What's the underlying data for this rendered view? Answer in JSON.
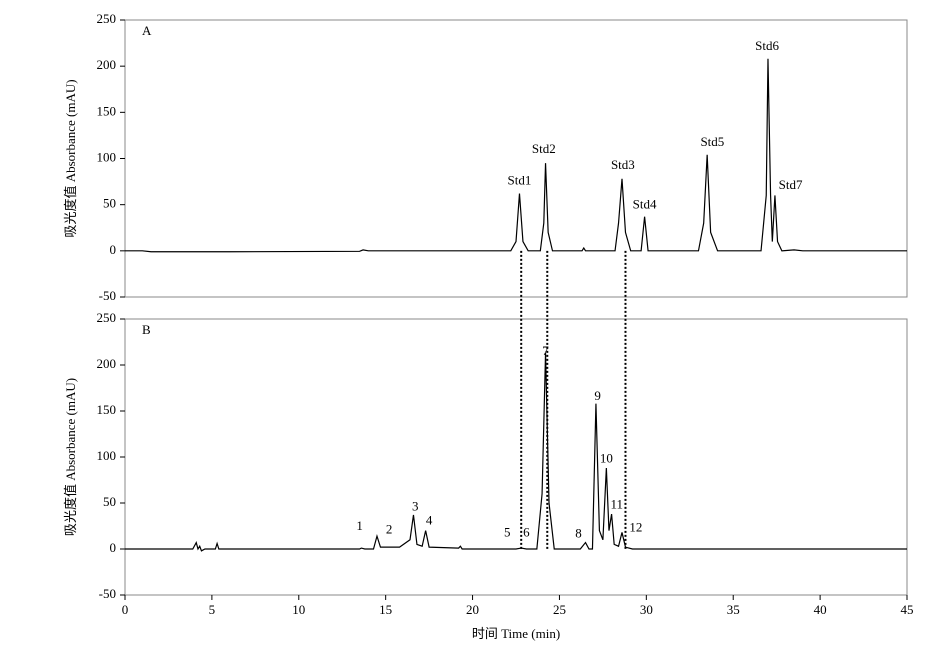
{
  "chart_data": [
    {
      "type": "line",
      "panel_label": "A",
      "y_label": "吸光度值 Absorbance (mAU)",
      "xlim": [
        0,
        45
      ],
      "ylim": [
        -50,
        250
      ],
      "yticks": [
        -50,
        0,
        50,
        100,
        150,
        200,
        250
      ],
      "series": [
        {
          "color": "#000000",
          "x": [
            0,
            1,
            1.5,
            5,
            6,
            13.5,
            13.7,
            14,
            18,
            22.2,
            22.5,
            22.7,
            22.9,
            23.2,
            23.9,
            24.1,
            24.2,
            24.35,
            24.6,
            26.3,
            26.4,
            26.5,
            28.2,
            28.4,
            28.6,
            28.8,
            29.1,
            29.7,
            29.9,
            30.1,
            33,
            33.3,
            33.5,
            33.7,
            34.1,
            36.6,
            36.9,
            37,
            37.15,
            37.25,
            37.4,
            37.55,
            37.8,
            38.5,
            39,
            45
          ],
          "values": [
            0,
            0,
            -1,
            -1,
            -1,
            -0.5,
            1,
            0,
            0,
            0,
            10,
            62,
            10,
            0,
            0,
            30,
            95,
            20,
            0,
            0,
            3,
            0,
            0,
            30,
            78,
            20,
            0,
            0,
            37,
            0,
            0,
            30,
            104,
            20,
            0,
            0,
            60,
            208,
            60,
            10,
            60,
            10,
            0,
            1,
            0,
            0
          ]
        }
      ],
      "annotations": [
        {
          "text": "Std1",
          "x": 22.7,
          "y": 75
        },
        {
          "text": "Std2",
          "x": 24.1,
          "y": 109
        },
        {
          "text": "Std3",
          "x": 28.65,
          "y": 92
        },
        {
          "text": "Std4",
          "x": 29.9,
          "y": 49
        },
        {
          "text": "Std5",
          "x": 33.8,
          "y": 117
        },
        {
          "text": "Std6",
          "x": 36.95,
          "y": 221
        },
        {
          "text": "Std7",
          "x": 38.3,
          "y": 70
        }
      ]
    },
    {
      "type": "line",
      "panel_label": "B",
      "y_label": "吸光度值 Absorbance (mAU)",
      "x_label": "时间 Time (min)",
      "xlim": [
        0,
        45
      ],
      "xticks": [
        0,
        5,
        10,
        15,
        20,
        25,
        30,
        35,
        40,
        45
      ],
      "ylim": [
        -50,
        250
      ],
      "yticks": [
        -50,
        0,
        50,
        100,
        150,
        200,
        250
      ],
      "series": [
        {
          "color": "#000000",
          "x": [
            0,
            3.9,
            4.1,
            4.2,
            4.3,
            4.4,
            4.6,
            5.2,
            5.3,
            5.4,
            13.5,
            13.6,
            13.8,
            14.3,
            14.5,
            14.7,
            15,
            15.8,
            16.4,
            16.6,
            16.8,
            17.1,
            17.3,
            17.5,
            19.2,
            19.3,
            19.4,
            22.5,
            22.8,
            23.1,
            23.7,
            24,
            24.2,
            24.4,
            24.7,
            26.2,
            26.5,
            26.7,
            26.9,
            27.1,
            27.3,
            27.5,
            27.7,
            27.85,
            28,
            28.15,
            28.4,
            28.6,
            28.8,
            29.2,
            45
          ],
          "values": [
            0,
            0,
            7,
            0,
            3,
            -2,
            0,
            0,
            6,
            0,
            0,
            1,
            0,
            0,
            14,
            2,
            2,
            2,
            10,
            37,
            5,
            3,
            20,
            2,
            1,
            3,
            0,
            0,
            1,
            0,
            0,
            60,
            213,
            50,
            0,
            0,
            7,
            0,
            0,
            158,
            20,
            10,
            88,
            20,
            38,
            5,
            3,
            18,
            2,
            0,
            0
          ]
        }
      ],
      "annotations": [
        {
          "text": "1",
          "x": 13.5,
          "y": 24
        },
        {
          "text": "2",
          "x": 15.2,
          "y": 20
        },
        {
          "text": "3",
          "x": 16.7,
          "y": 45
        },
        {
          "text": "4",
          "x": 17.5,
          "y": 30
        },
        {
          "text": "5",
          "x": 22,
          "y": 17
        },
        {
          "text": "6",
          "x": 23.1,
          "y": 17
        },
        {
          "text": "7",
          "x": 24.2,
          "y": 214
        },
        {
          "text": "8",
          "x": 26.1,
          "y": 16
        },
        {
          "text": "9",
          "x": 27.2,
          "y": 165
        },
        {
          "text": "10",
          "x": 27.7,
          "y": 97
        },
        {
          "text": "11",
          "x": 28.3,
          "y": 47
        },
        {
          "text": "12",
          "x": 29.4,
          "y": 22
        }
      ]
    }
  ],
  "connectors": [
    22.8,
    24.3,
    28.8
  ]
}
